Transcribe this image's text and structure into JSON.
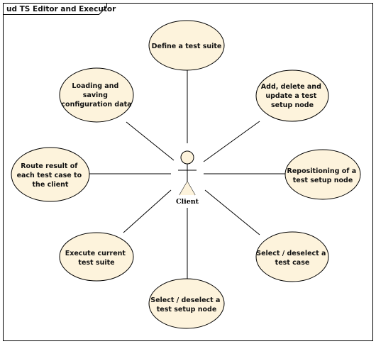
{
  "diagram": {
    "title": "ud TS Editor and Executor",
    "actor": {
      "name": "Client"
    },
    "use_cases": [
      {
        "id": "define-test-suite",
        "lines": [
          "Define a test suite"
        ]
      },
      {
        "id": "add-delete-update-node",
        "lines": [
          "Add, delete and",
          "update a test",
          "setup node"
        ]
      },
      {
        "id": "repositioning-node",
        "lines": [
          "Repositioning of a",
          "test setup node"
        ]
      },
      {
        "id": "select-test-case",
        "lines": [
          "Select / deselect a",
          "test case"
        ]
      },
      {
        "id": "select-setup-node",
        "lines": [
          "Select / deselect a",
          "test setup node"
        ]
      },
      {
        "id": "execute-test-suite",
        "lines": [
          "Execute current",
          "test suite"
        ]
      },
      {
        "id": "route-result",
        "lines": [
          "Route result of",
          "each test case to",
          "the client"
        ]
      },
      {
        "id": "loading-saving-config",
        "lines": [
          "Loading and",
          "saving",
          "configuration data"
        ]
      }
    ],
    "colors": {
      "use_case_fill": "#fdf3dc",
      "stroke": "#000000",
      "background": "#ffffff"
    }
  }
}
